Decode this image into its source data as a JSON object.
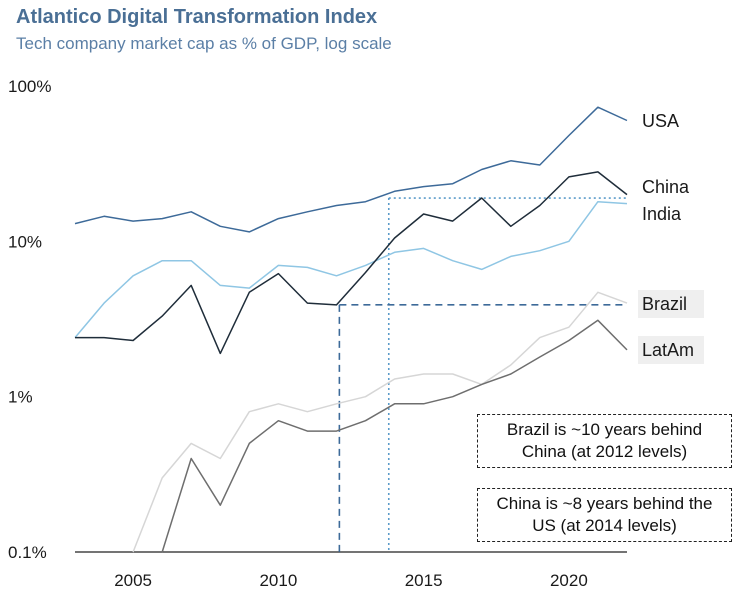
{
  "header": {
    "title": "Atlantico Digital Transformation Index",
    "subtitle": "Tech company market cap as % of GDP, log scale"
  },
  "annotations": {
    "brazil_note": "Brazil is ~10 years behind China (at 2012 levels)",
    "china_note": "China is ~8 years behind the US (at 2014 levels)"
  },
  "chart_data": {
    "type": "line",
    "title": "Atlantico Digital Transformation Index",
    "subtitle": "Tech company market cap as % of GDP, log scale",
    "y_scale": "log",
    "ylim": [
      0.1,
      100
    ],
    "xlim": [
      2003,
      2022
    ],
    "x_ticks": [
      2005,
      2010,
      2015,
      2020
    ],
    "x_tick_labels": [
      "2005",
      "2010",
      "2015",
      "2020"
    ],
    "y_ticks": [
      0.1,
      1,
      10,
      100
    ],
    "y_tick_labels": [
      "0.1%",
      "1%",
      "10%",
      "100%"
    ],
    "grid": false,
    "x": [
      2003,
      2004,
      2005,
      2006,
      2007,
      2008,
      2009,
      2010,
      2011,
      2012,
      2013,
      2014,
      2015,
      2016,
      2017,
      2018,
      2019,
      2020,
      2021,
      2022
    ],
    "series": [
      {
        "name": "USA",
        "color": "#3d6a99",
        "values": [
          13,
          14.5,
          13.5,
          14,
          15.5,
          12.5,
          11.5,
          14,
          15.5,
          17,
          18,
          21,
          22.5,
          23.5,
          29,
          33,
          31,
          48,
          73,
          60
        ]
      },
      {
        "name": "China",
        "color": "#1f2d3a",
        "values": [
          2.4,
          2.4,
          2.3,
          3.3,
          5.2,
          1.9,
          4.7,
          6.2,
          4.0,
          3.9,
          6.3,
          10.5,
          15,
          13.5,
          19,
          12.5,
          17,
          26,
          28,
          20
        ]
      },
      {
        "name": "India",
        "color": "#8fc6e4",
        "values": [
          2.4,
          4,
          6,
          7.5,
          7.5,
          5.2,
          5,
          7,
          6.8,
          6,
          7,
          8.5,
          9,
          7.5,
          6.6,
          8,
          8.7,
          10,
          18,
          17.5
        ]
      },
      {
        "name": "Brazil",
        "color": "#d6d6d6",
        "values": [
          null,
          null,
          0.1,
          0.3,
          0.5,
          0.4,
          0.8,
          0.9,
          0.8,
          0.9,
          1.0,
          1.3,
          1.4,
          1.4,
          1.2,
          1.6,
          2.4,
          2.8,
          4.7,
          4.0
        ]
      },
      {
        "name": "LatAm",
        "color": "#6e6e6e",
        "values": [
          null,
          null,
          null,
          0.1,
          0.4,
          0.2,
          0.5,
          0.7,
          0.6,
          0.6,
          0.7,
          0.9,
          0.9,
          1.0,
          1.2,
          1.4,
          1.8,
          2.3,
          3.1,
          2.0
        ]
      }
    ],
    "reference_lines": [
      {
        "style": "dotted",
        "color": "#5b9bc9",
        "y": 19,
        "x_from": 2013.8,
        "x_to": 2022,
        "x_at": 2013.8
      },
      {
        "style": "dashed",
        "color": "#3d6a99",
        "y": 3.9,
        "x_from": 2012.1,
        "x_to": 2022,
        "x_at": 2012.1
      }
    ]
  }
}
